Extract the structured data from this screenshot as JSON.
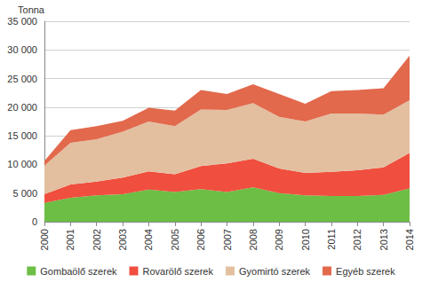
{
  "chart_data": {
    "type": "area",
    "ylabel": "Tonna",
    "categories": [
      "2000",
      "2001",
      "2002",
      "2003",
      "2004",
      "2005",
      "2006",
      "2007",
      "2008",
      "2009",
      "2010",
      "2011",
      "2012",
      "2013",
      "2014"
    ],
    "stacked": true,
    "grid": true,
    "legend": "bottom",
    "ylim": [
      0,
      35000
    ],
    "yticks": [
      0,
      {
        "value": 5000,
        "label": "5 000"
      },
      {
        "value": 10000,
        "label": "10 000"
      },
      {
        "value": 15000,
        "label": "15 000"
      },
      {
        "value": 20000,
        "label": "20 000"
      },
      {
        "value": 25000,
        "label": "25 000"
      },
      {
        "value": 30000,
        "label": "30 000"
      },
      {
        "value": 35000,
        "label": "35 000"
      }
    ],
    "series": [
      {
        "name": "Gombaölő szerek",
        "color": "#6dbe45",
        "values": [
          3300,
          4200,
          4600,
          4800,
          5600,
          5200,
          5700,
          5200,
          6000,
          5000,
          4600,
          4500,
          4500,
          4700,
          5800
        ]
      },
      {
        "name": "Rovarölő szerek",
        "color": "#f04e3e",
        "values": [
          1500,
          2300,
          2400,
          2900,
          3200,
          3100,
          4000,
          5000,
          5000,
          4300,
          3900,
          4200,
          4500,
          4800,
          6200
        ]
      },
      {
        "name": "Gyomirtó szerek",
        "color": "#e3bfa0",
        "values": [
          5000,
          7300,
          7400,
          8000,
          8700,
          8400,
          9900,
          9300,
          9700,
          9000,
          9000,
          10200,
          9900,
          9200,
          9200
        ]
      },
      {
        "name": "Egyéb szerek",
        "color": "#e2694c",
        "values": [
          800,
          2200,
          2300,
          1900,
          2400,
          2700,
          3400,
          2800,
          3300,
          4000,
          3100,
          3900,
          4100,
          4600,
          7800
        ]
      }
    ]
  }
}
